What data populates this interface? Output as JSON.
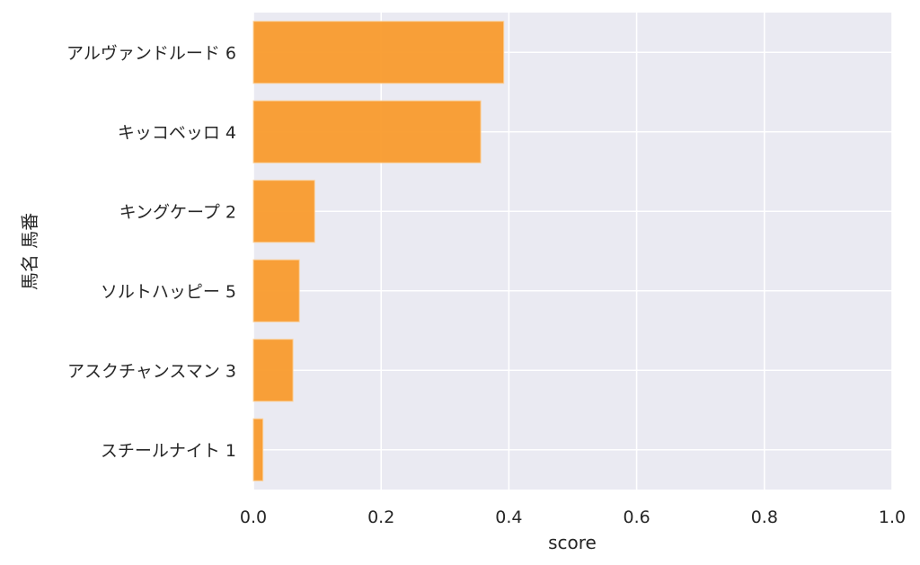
{
  "chart_data": {
    "type": "bar",
    "orientation": "horizontal",
    "categories": [
      "アルヴァンドルード 6",
      "キッコベッロ 4",
      "キングケープ 2",
      "ソルトハッピー 5",
      "アスクチャンスマン 3",
      "スチールナイト 1"
    ],
    "values": [
      0.392,
      0.356,
      0.096,
      0.072,
      0.062,
      0.015
    ],
    "xlabel": "score",
    "ylabel": "馬名 馬番",
    "xlim": [
      0.0,
      1.0
    ],
    "xticks": [
      "0.0",
      "0.2",
      "0.4",
      "0.6",
      "0.8",
      "1.0"
    ],
    "grid": true,
    "colors": {
      "bar": "#f99b2d",
      "bar_edge": "#fbd09a",
      "plot_background": "#eaeaf2",
      "grid": "#ffffff"
    }
  }
}
